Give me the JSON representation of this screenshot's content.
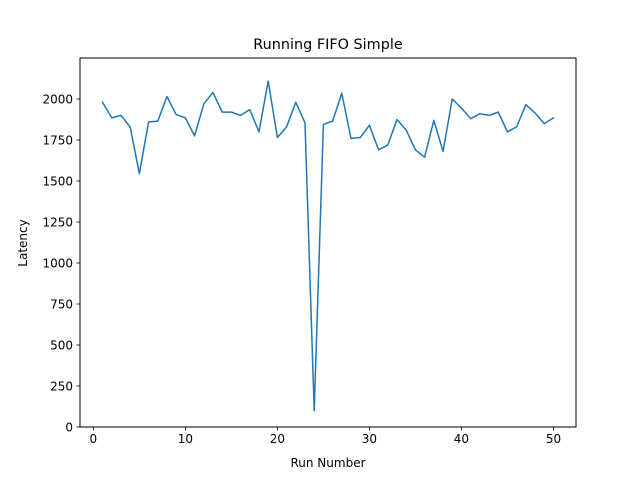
{
  "chart_data": {
    "type": "line",
    "title": "Running FIFO Simple",
    "xlabel": "Run Number",
    "ylabel": "Latency",
    "xlim": [
      -1.45,
      52.45
    ],
    "ylim": [
      0,
      2250
    ],
    "xticks": [
      0,
      10,
      20,
      30,
      40,
      50
    ],
    "yticks": [
      0,
      250,
      500,
      750,
      1000,
      1250,
      1500,
      1750,
      2000
    ],
    "xtick_labels": [
      "0",
      "10",
      "20",
      "30",
      "40",
      "50"
    ],
    "ytick_labels": [
      "0",
      "250",
      "500",
      "750",
      "1000",
      "1250",
      "1500",
      "1750",
      "2000"
    ],
    "grid": false,
    "legend": "none",
    "series": [
      {
        "color": "#1f77b4",
        "x": [
          1,
          2,
          3,
          4,
          5,
          6,
          7,
          8,
          9,
          10,
          11,
          12,
          13,
          14,
          15,
          16,
          17,
          18,
          19,
          20,
          21,
          22,
          23,
          24,
          25,
          26,
          27,
          28,
          29,
          30,
          31,
          32,
          33,
          34,
          35,
          36,
          37,
          38,
          39,
          40,
          41,
          42,
          43,
          44,
          45,
          46,
          47,
          48,
          49,
          50
        ],
        "values": [
          1980,
          1885,
          1900,
          1830,
          1545,
          1860,
          1865,
          2015,
          1905,
          1885,
          1775,
          1970,
          2040,
          1920,
          1920,
          1900,
          1935,
          1800,
          2110,
          1765,
          1830,
          1980,
          1855,
          100,
          1845,
          1865,
          2035,
          1760,
          1765,
          1840,
          1690,
          1720,
          1875,
          1810,
          1690,
          1645,
          1870,
          1680,
          2000,
          1945,
          1880,
          1910,
          1900,
          1920,
          1800,
          1830,
          1965,
          1915,
          1850,
          1885
        ]
      }
    ]
  }
}
